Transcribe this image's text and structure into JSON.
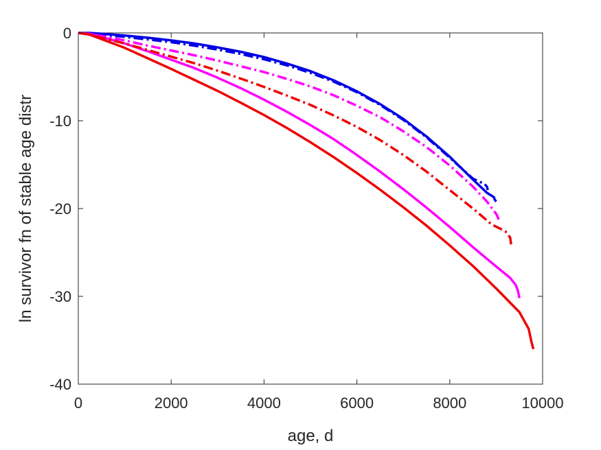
{
  "chart_data": {
    "type": "line",
    "title": "",
    "xlabel": "age, d",
    "ylabel": "ln survivor fn of stable age distr",
    "xlim": [
      0,
      10000
    ],
    "ylim": [
      -40,
      0
    ],
    "xticks": [
      0,
      2000,
      4000,
      6000,
      8000,
      10000
    ],
    "xtick_labels": [
      "0",
      "2000",
      "4000",
      "6000",
      "8000",
      "10000"
    ],
    "yticks": [
      0,
      -10,
      -20,
      -30,
      -40
    ],
    "ytick_labels": [
      "0",
      "-10",
      "-20",
      "-30",
      "-40"
    ],
    "grid": false,
    "legend": "none",
    "series": [
      {
        "color": "#0000e6",
        "style": "solid",
        "x": [
          0,
          250,
          500,
          1000,
          1500,
          2000,
          2500,
          3000,
          3500,
          4000,
          4500,
          5000,
          5500,
          6000,
          6500,
          7000,
          7500,
          8000,
          8500,
          8800,
          8950,
          8970,
          9000
        ],
        "y": [
          0,
          0,
          -0.1,
          -0.3,
          -0.55,
          -0.85,
          -1.2,
          -1.65,
          -2.15,
          -2.75,
          -3.5,
          -4.35,
          -5.4,
          -6.65,
          -8.1,
          -9.8,
          -11.8,
          -14.1,
          -16.7,
          -18.2,
          -18.7,
          -19.0,
          -19.2
        ]
      },
      {
        "color": "#0000e6",
        "style": "dashdot",
        "x": [
          0,
          250,
          500,
          1000,
          1500,
          2000,
          2500,
          3000,
          3500,
          4000,
          4500,
          5000,
          5500,
          6000,
          6500,
          7000,
          7500,
          8000,
          8500,
          8750,
          8800,
          8820
        ],
        "y": [
          0,
          -0.05,
          -0.2,
          -0.45,
          -0.75,
          -1.05,
          -1.45,
          -1.9,
          -2.4,
          -3.0,
          -3.7,
          -4.55,
          -5.55,
          -6.75,
          -8.2,
          -9.9,
          -11.9,
          -14.2,
          -16.6,
          -17.2,
          -17.5,
          -17.9
        ]
      },
      {
        "color": "#ff00ff",
        "style": "solid",
        "x": [
          0,
          250,
          500,
          1000,
          1500,
          2000,
          2500,
          3000,
          3500,
          4000,
          4500,
          5000,
          5500,
          6000,
          6500,
          7000,
          7500,
          8000,
          8500,
          9000,
          9300,
          9420,
          9470,
          9500
        ],
        "y": [
          0,
          -0.1,
          -0.45,
          -1.2,
          -2.1,
          -3.05,
          -4.0,
          -5.1,
          -6.3,
          -7.6,
          -9.0,
          -10.5,
          -12.1,
          -13.9,
          -15.8,
          -17.8,
          -19.9,
          -22.1,
          -24.4,
          -26.6,
          -27.9,
          -28.7,
          -29.4,
          -30.2
        ]
      },
      {
        "color": "#ff00ff",
        "style": "dashdot",
        "x": [
          0,
          250,
          500,
          1000,
          1500,
          2000,
          2500,
          3000,
          3500,
          4000,
          4500,
          5000,
          5500,
          6000,
          6500,
          7000,
          7500,
          8000,
          8500,
          8800,
          9000,
          9080
        ],
        "y": [
          0,
          -0.1,
          -0.35,
          -0.85,
          -1.45,
          -2.0,
          -2.55,
          -3.15,
          -3.8,
          -4.45,
          -5.25,
          -6.1,
          -7.1,
          -8.3,
          -9.6,
          -11.2,
          -13.0,
          -15.1,
          -17.5,
          -19.2,
          -20.6,
          -21.5
        ]
      },
      {
        "color": "#ee0000",
        "style": "solid",
        "x": [
          0,
          250,
          500,
          1000,
          1500,
          2000,
          2500,
          3000,
          3500,
          4000,
          4500,
          5000,
          5500,
          6000,
          6500,
          7000,
          7500,
          8000,
          8500,
          9000,
          9500,
          9700,
          9760,
          9800
        ],
        "y": [
          0,
          -0.2,
          -0.7,
          -1.7,
          -2.9,
          -4.1,
          -5.35,
          -6.6,
          -7.95,
          -9.35,
          -10.85,
          -12.45,
          -14.15,
          -15.95,
          -17.85,
          -19.85,
          -21.95,
          -24.2,
          -26.55,
          -29.1,
          -31.8,
          -33.7,
          -35.2,
          -36.0
        ]
      },
      {
        "color": "#ee0000",
        "style": "dashdot",
        "x": [
          0,
          250,
          500,
          1000,
          1500,
          2000,
          2500,
          3000,
          3500,
          4000,
          4500,
          5000,
          5500,
          6000,
          6500,
          7000,
          7500,
          8000,
          8500,
          8900,
          9200,
          9300,
          9330
        ],
        "y": [
          0,
          -0.15,
          -0.55,
          -1.2,
          -1.95,
          -2.7,
          -3.45,
          -4.3,
          -5.2,
          -6.15,
          -7.15,
          -8.2,
          -9.4,
          -10.7,
          -12.2,
          -13.9,
          -15.8,
          -17.9,
          -20.0,
          -21.8,
          -22.6,
          -23.3,
          -24.4
        ]
      }
    ]
  }
}
